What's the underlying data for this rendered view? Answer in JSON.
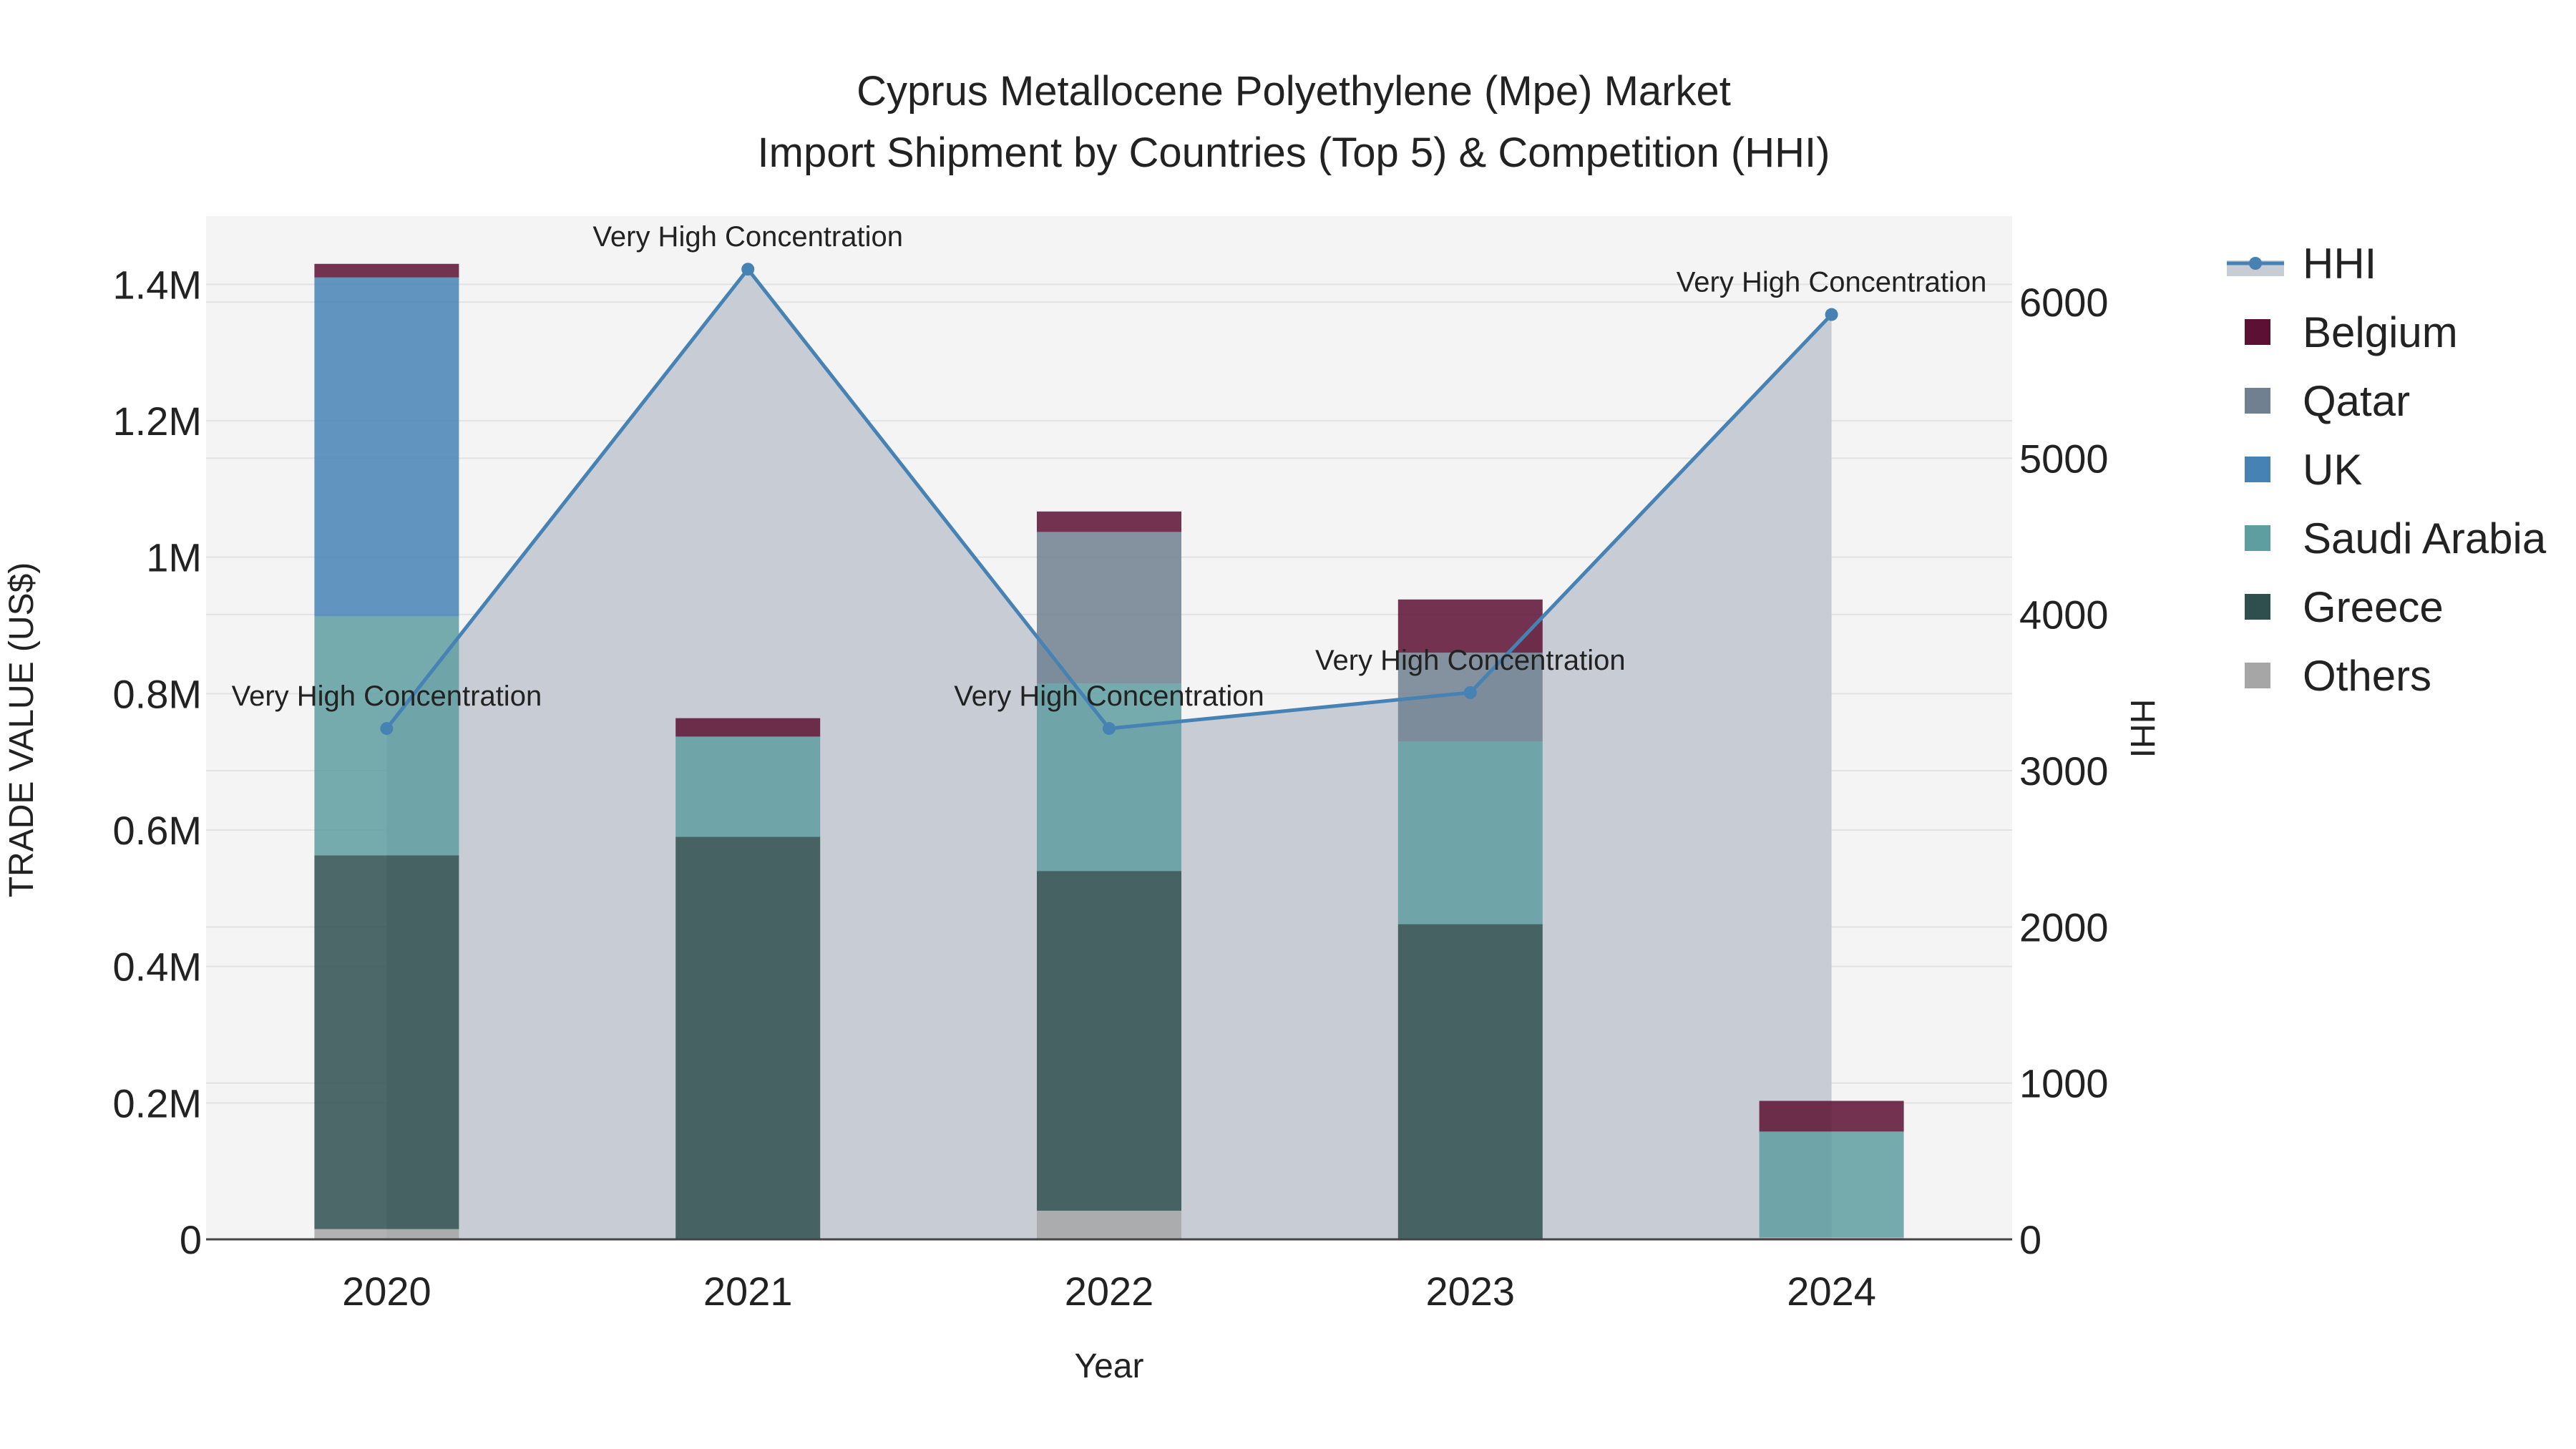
{
  "chart_data": {
    "type": "bar",
    "stacked": true,
    "title_lines": [
      "Cyprus Metallocene Polyethylene (Mpe) Market",
      "Import Shipment by Countries (Top 5) & Competition (HHI)"
    ],
    "xlabel": "Year",
    "ylabel": "TRADE VALUE (US$)",
    "y2label": "HHI",
    "categories": [
      "2020",
      "2021",
      "2022",
      "2023",
      "2024"
    ],
    "ylim": [
      0,
      1500000
    ],
    "y2lim": [
      0,
      6550
    ],
    "y_ticks": [
      {
        "value": 0,
        "label": "0"
      },
      {
        "value": 200000,
        "label": "0.2M"
      },
      {
        "value": 400000,
        "label": "0.4M"
      },
      {
        "value": 600000,
        "label": "0.6M"
      },
      {
        "value": 800000,
        "label": "0.8M"
      },
      {
        "value": 1000000,
        "label": "1M"
      },
      {
        "value": 1200000,
        "label": "1.2M"
      },
      {
        "value": 1400000,
        "label": "1.4M"
      }
    ],
    "y2_ticks": [
      {
        "value": 0,
        "label": "0"
      },
      {
        "value": 1000,
        "label": "1000"
      },
      {
        "value": 2000,
        "label": "2000"
      },
      {
        "value": 3000,
        "label": "3000"
      },
      {
        "value": 4000,
        "label": "4000"
      },
      {
        "value": 5000,
        "label": "5000"
      },
      {
        "value": 6000,
        "label": "6000"
      }
    ],
    "series": [
      {
        "name": "Others",
        "color": "#a6a6a6",
        "values": [
          15000,
          0,
          42000,
          0,
          3000
        ]
      },
      {
        "name": "Greece",
        "color": "#2f4f4f",
        "values": [
          548000,
          590000,
          498000,
          462000,
          0
        ]
      },
      {
        "name": "Saudi Arabia",
        "color": "#5f9ea0",
        "values": [
          350000,
          147000,
          275000,
          268000,
          155000
        ]
      },
      {
        "name": "UK",
        "color": "#4682b4",
        "values": [
          497000,
          0,
          0,
          0,
          0
        ]
      },
      {
        "name": "Qatar",
        "color": "#708090",
        "values": [
          0,
          0,
          222000,
          130000,
          0
        ]
      },
      {
        "name": "Belgium",
        "color": "#5c1033",
        "values": [
          20000,
          27000,
          30000,
          78000,
          45000
        ]
      }
    ],
    "hhi": {
      "name": "HHI",
      "color": "#4682b4",
      "values": [
        3270,
        6210,
        3270,
        3500,
        5920
      ],
      "labels": [
        "Very High Concentration",
        "Very High Concentration",
        "Very High Concentration",
        "Very High Concentration",
        "Very High Concentration"
      ]
    },
    "legend": [
      "HHI",
      "Belgium",
      "Qatar",
      "UK",
      "Saudi Arabia",
      "Greece",
      "Others"
    ],
    "legend_position": "right",
    "plot_background": "#f4f4f4",
    "fill_color": "#c8ccd4"
  }
}
